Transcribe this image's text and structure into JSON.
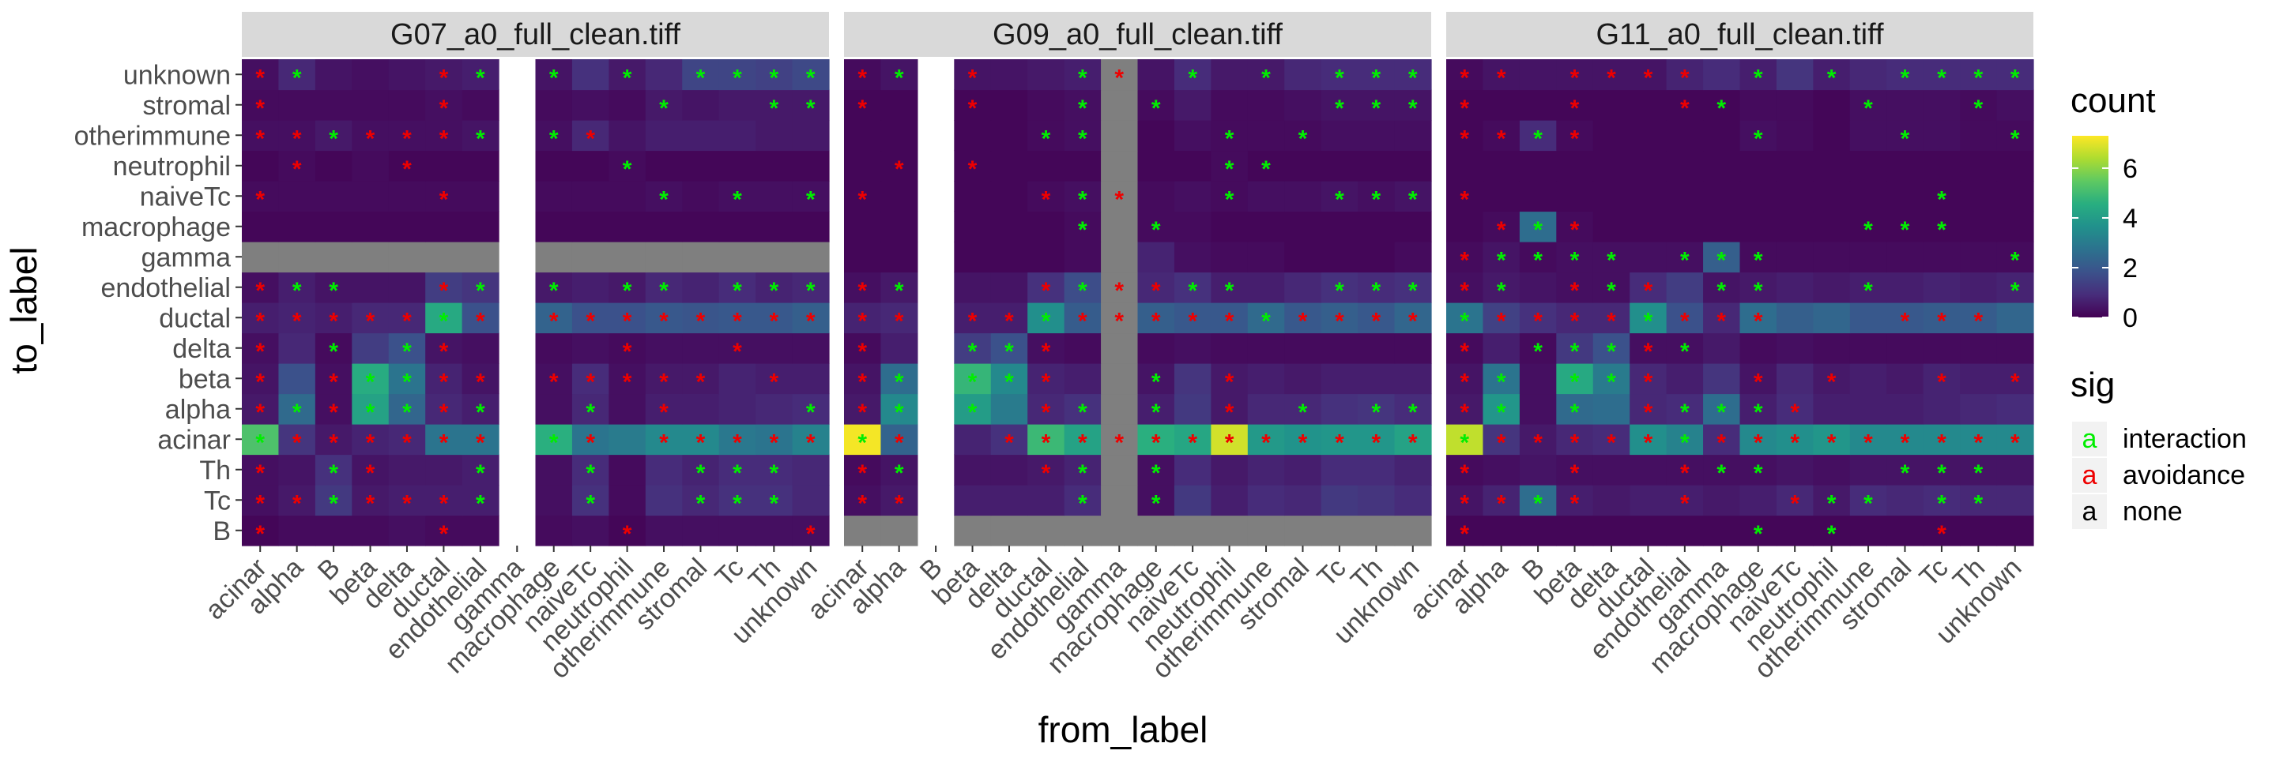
{
  "chart_data": {
    "type": "heatmap",
    "xlabel": "from_label",
    "ylabel": "to_label",
    "x_categories": [
      "acinar",
      "alpha",
      "B",
      "beta",
      "delta",
      "ductal",
      "endothelial",
      "gamma",
      "macrophage",
      "naiveTc",
      "neutrophil",
      "otherimmune",
      "stromal",
      "Tc",
      "Th",
      "unknown"
    ],
    "y_categories": [
      "B",
      "Tc",
      "Th",
      "acinar",
      "alpha",
      "beta",
      "delta",
      "ductal",
      "endothelial",
      "gamma",
      "macrophage",
      "naiveTc",
      "neutrophil",
      "otherimmune",
      "stromal",
      "unknown"
    ],
    "count_legend": {
      "title": "count",
      "range": [
        0,
        7.3
      ],
      "breaks": [
        "0",
        "2",
        "4",
        "6"
      ]
    },
    "sig_legend": {
      "title": "sig",
      "key_glyph": "a",
      "entries": [
        {
          "label": "interaction",
          "code": "i",
          "color": "#00ee00"
        },
        {
          "label": "avoidance",
          "code": "a",
          "color": "#ee0000"
        },
        {
          "label": "none",
          "code": "n",
          "color": "#000000"
        }
      ]
    },
    "na_color": "#7f7f7f",
    "panels": [
      {
        "title": "G07_a0_full_clean.tiff",
        "missing_columns": [
          "gamma"
        ],
        "na_rows": [
          "gamma"
        ],
        "na_cols": [],
        "matrix": [
          [
            0.1,
            0.2,
            0.2,
            0.2,
            0.3,
            0.2,
            0.2,
            null,
            0.2,
            0.3,
            0.1,
            0.3,
            0.3,
            0.3,
            0.3,
            0.3
          ],
          [
            0.3,
            0.5,
            1.2,
            0.5,
            0.6,
            0.6,
            0.6,
            null,
            0.3,
            1.0,
            0.2,
            1.0,
            0.8,
            1.0,
            1.0,
            0.8
          ],
          [
            0.3,
            0.4,
            1.0,
            0.4,
            0.5,
            0.5,
            0.6,
            null,
            0.3,
            0.9,
            0.2,
            0.9,
            0.7,
            0.9,
            0.9,
            0.8
          ],
          [
            5.2,
            1.1,
            0.5,
            0.7,
            0.8,
            2.8,
            2.8,
            null,
            4.6,
            2.8,
            3.0,
            3.4,
            3.4,
            2.9,
            2.8,
            3.2
          ],
          [
            0.5,
            2.5,
            0.3,
            4.2,
            2.4,
            0.8,
            0.6,
            null,
            0.3,
            0.8,
            0.3,
            0.6,
            0.6,
            0.7,
            0.8,
            0.9
          ],
          [
            0.4,
            1.8,
            0.3,
            4.5,
            2.8,
            0.7,
            0.4,
            null,
            0.3,
            0.9,
            0.3,
            0.5,
            0.5,
            0.7,
            0.6,
            0.6
          ],
          [
            0.3,
            0.8,
            0.2,
            1.3,
            1.8,
            0.4,
            0.3,
            null,
            0.2,
            0.3,
            0.2,
            0.3,
            0.3,
            0.3,
            0.3,
            0.3
          ],
          [
            0.6,
            0.7,
            0.6,
            0.8,
            0.8,
            4.4,
            1.8,
            null,
            2.3,
            1.8,
            1.8,
            2.0,
            1.9,
            2.0,
            2.0,
            2.2
          ],
          [
            0.3,
            0.6,
            0.4,
            0.4,
            0.4,
            1.3,
            1.1,
            null,
            0.5,
            0.6,
            0.5,
            0.8,
            0.7,
            0.9,
            0.7,
            0.8
          ],
          [
            null,
            null,
            null,
            null,
            null,
            null,
            null,
            null,
            null,
            null,
            null,
            null,
            null,
            null,
            null,
            null
          ],
          [
            0.1,
            0.1,
            0.1,
            0.1,
            0.1,
            0.1,
            0.1,
            null,
            0.1,
            0.1,
            0.1,
            0.1,
            0.1,
            0.1,
            0.1,
            0.1
          ],
          [
            0.2,
            0.2,
            0.2,
            0.2,
            0.2,
            0.2,
            0.2,
            null,
            0.2,
            0.2,
            0.2,
            0.3,
            0.2,
            0.3,
            0.3,
            0.3
          ],
          [
            0.1,
            0.2,
            0.1,
            0.2,
            0.1,
            0.1,
            0.1,
            null,
            0.1,
            0.1,
            0.2,
            0.1,
            0.1,
            0.1,
            0.1,
            0.1
          ],
          [
            0.3,
            0.3,
            0.5,
            0.3,
            0.3,
            0.3,
            0.4,
            null,
            0.3,
            0.8,
            0.4,
            0.6,
            0.6,
            0.6,
            0.5,
            0.5
          ],
          [
            0.2,
            0.2,
            0.2,
            0.2,
            0.2,
            0.3,
            0.2,
            null,
            0.2,
            0.3,
            0.2,
            0.5,
            0.4,
            0.5,
            0.5,
            0.5
          ],
          [
            0.3,
            0.8,
            0.4,
            0.3,
            0.4,
            0.5,
            0.6,
            null,
            0.4,
            1.0,
            0.5,
            0.8,
            1.5,
            1.5,
            1.4,
            1.6
          ]
        ],
        "sig": [
          "annnnanannannnna",
          "aaiaaaianinniiin",
          "aniannianinniiin",
          "iaaaaaanianaaaaa",
          "aiaiiaianinannni",
          "anaiiaanaaaaanan",
          "aninianannannann",
          "aaaaaiaaaaaaaaaa",
          "aiinnaininiiniii",
          "nnnnnnnnnnnnnnnn",
          "nnnnnnnnnnnnnnnn",
          "annnnannnnninini",
          "nannannnnninnnnn",
          "aaiaaaiaiannnnnn",
          "annnnanannninnii",
          "ainnnainininiiii"
        ]
      },
      {
        "title": "G09_a0_full_clean.tiff",
        "missing_columns": [
          "B"
        ],
        "na_rows": [
          "B"
        ],
        "na_cols": [
          "gamma"
        ],
        "matrix": [
          [
            null,
            null,
            null,
            null,
            null,
            null,
            null,
            null,
            null,
            null,
            null,
            null,
            null,
            null,
            null,
            null
          ],
          [
            0.3,
            0.5,
            null,
            0.6,
            0.6,
            0.6,
            0.9,
            null,
            0.3,
            1.2,
            0.6,
            0.9,
            0.8,
            1.2,
            1.1,
            0.9
          ],
          [
            0.2,
            0.4,
            null,
            0.4,
            0.4,
            0.5,
            0.7,
            null,
            0.3,
            0.9,
            0.5,
            0.7,
            0.6,
            0.9,
            0.9,
            0.7
          ],
          [
            7.2,
            2.3,
            null,
            0.7,
            1.0,
            4.9,
            4.2,
            null,
            4.6,
            4.3,
            6.8,
            3.9,
            3.7,
            3.8,
            3.8,
            4.2
          ],
          [
            0.5,
            3.4,
            null,
            4.0,
            3.0,
            0.8,
            1.0,
            null,
            0.6,
            1.2,
            0.5,
            0.8,
            0.8,
            1.0,
            1.1,
            0.9
          ],
          [
            0.4,
            2.6,
            null,
            4.8,
            3.4,
            0.7,
            0.6,
            null,
            0.4,
            1.1,
            0.5,
            0.6,
            0.5,
            0.6,
            0.6,
            0.6
          ],
          [
            0.2,
            0.6,
            null,
            1.3,
            1.8,
            0.3,
            0.2,
            null,
            0.2,
            0.3,
            0.2,
            0.2,
            0.2,
            0.2,
            0.2,
            0.2
          ],
          [
            0.7,
            0.8,
            null,
            0.6,
            0.6,
            3.6,
            2.1,
            null,
            2.2,
            2.0,
            2.0,
            2.5,
            2.0,
            2.2,
            2.0,
            2.4
          ],
          [
            0.3,
            0.5,
            null,
            0.4,
            0.4,
            1.0,
            1.7,
            null,
            0.8,
            1.0,
            0.6,
            0.6,
            0.8,
            1.0,
            0.9,
            1.0
          ],
          [
            0.1,
            0.1,
            null,
            0.1,
            0.1,
            0.1,
            0.2,
            null,
            0.7,
            0.3,
            0.2,
            0.2,
            0.1,
            0.1,
            0.1,
            0.2
          ],
          [
            0.1,
            0.1,
            null,
            0.1,
            0.1,
            0.1,
            0.2,
            null,
            0.2,
            0.2,
            0.1,
            0.1,
            0.1,
            0.1,
            0.1,
            0.1
          ],
          [
            0.1,
            0.1,
            null,
            0.1,
            0.1,
            0.2,
            0.3,
            null,
            0.2,
            0.3,
            0.2,
            0.3,
            0.3,
            0.4,
            0.3,
            0.4
          ],
          [
            0.1,
            0.1,
            null,
            0.1,
            0.1,
            0.1,
            0.1,
            null,
            0.1,
            0.1,
            0.2,
            0.1,
            0.1,
            0.1,
            0.1,
            0.1
          ],
          [
            0.1,
            0.1,
            null,
            0.1,
            0.1,
            0.2,
            0.3,
            null,
            0.1,
            0.3,
            0.2,
            0.2,
            0.2,
            0.3,
            0.3,
            0.3
          ],
          [
            0.1,
            0.1,
            null,
            0.1,
            0.1,
            0.2,
            0.3,
            null,
            0.2,
            0.5,
            0.2,
            0.2,
            0.3,
            0.4,
            0.4,
            0.4
          ],
          [
            0.2,
            0.4,
            null,
            0.4,
            0.4,
            0.5,
            0.6,
            null,
            0.4,
            0.9,
            0.5,
            0.5,
            0.8,
            0.9,
            0.9,
            0.9
          ]
        ],
        "sig": [
          "nnnnnnnnnnnnnnnn",
          "aannnnininnnnnnn",
          "ainnnaininnnnnnn",
          "iannaaaaaaaaaaaa",
          "aininaininaninii",
          "ainiianninannnnn",
          "aniiiannnnnnnnnn",
          "aaaaaiaaaaaiaaaa",
          "ainnnaiaaiinniii",
          "nnnnnnnnnnnnnnnn",
          "nnnnnnininnnnnnn",
          "annnnaianninniii",
          "nanannnnnniinnnn",
          "nnnnniinnnininnn",
          "annannininnnniii",
          "ainannianininiii"
        ]
      },
      {
        "title": "G11_a0_full_clean.tiff",
        "missing_columns": [],
        "na_rows": [],
        "na_cols": [],
        "matrix": [
          [
            0.1,
            0.1,
            0.1,
            0.1,
            0.1,
            0.1,
            0.1,
            0.1,
            0.1,
            0.1,
            0.1,
            0.1,
            0.1,
            0.1,
            0.1,
            0.1
          ],
          [
            0.4,
            0.7,
            2.6,
            0.6,
            0.5,
            0.6,
            0.6,
            0.5,
            0.6,
            0.8,
            0.5,
            0.9,
            0.8,
            0.9,
            0.8,
            0.8
          ],
          [
            0.2,
            0.3,
            0.4,
            0.3,
            0.3,
            0.3,
            0.3,
            0.3,
            0.3,
            0.4,
            0.3,
            0.4,
            0.4,
            0.4,
            0.4,
            0.4
          ],
          [
            6.6,
            1.1,
            0.5,
            0.8,
            0.9,
            3.6,
            3.2,
            0.9,
            3.4,
            3.6,
            3.8,
            3.4,
            3.4,
            3.4,
            3.4,
            3.4
          ],
          [
            0.5,
            3.8,
            0.3,
            2.5,
            2.6,
            0.8,
            0.9,
            2.6,
            0.6,
            0.9,
            0.6,
            0.6,
            0.6,
            0.7,
            0.8,
            0.9
          ],
          [
            0.4,
            2.8,
            0.3,
            4.4,
            3.0,
            0.8,
            0.6,
            1.1,
            0.4,
            0.8,
            0.5,
            0.6,
            0.5,
            0.7,
            0.6,
            0.6
          ],
          [
            0.2,
            0.6,
            0.2,
            1.2,
            1.8,
            0.3,
            0.3,
            0.5,
            0.2,
            0.3,
            0.2,
            0.2,
            0.2,
            0.2,
            0.2,
            0.2
          ],
          [
            2.8,
            1.4,
            1.0,
            0.8,
            0.8,
            3.6,
            1.8,
            0.8,
            2.6,
            2.2,
            2.4,
            2.0,
            2.0,
            2.1,
            2.1,
            2.4
          ],
          [
            0.3,
            0.5,
            0.4,
            0.3,
            0.3,
            0.9,
            1.3,
            0.4,
            0.5,
            0.6,
            0.5,
            0.6,
            0.6,
            0.7,
            0.6,
            0.7
          ],
          [
            0.2,
            0.4,
            0.2,
            0.3,
            0.3,
            0.3,
            0.3,
            2.2,
            0.2,
            0.2,
            0.2,
            0.2,
            0.2,
            0.2,
            0.2,
            0.2
          ],
          [
            0.1,
            0.2,
            2.6,
            0.2,
            0.1,
            0.1,
            0.1,
            0.1,
            0.1,
            0.1,
            0.1,
            0.1,
            0.1,
            0.1,
            0.1,
            0.1
          ],
          [
            0.1,
            0.1,
            0.1,
            0.1,
            0.1,
            0.1,
            0.1,
            0.1,
            0.1,
            0.1,
            0.1,
            0.1,
            0.1,
            0.1,
            0.1,
            0.1
          ],
          [
            0.1,
            0.1,
            0.1,
            0.1,
            0.1,
            0.1,
            0.1,
            0.1,
            0.1,
            0.1,
            0.1,
            0.1,
            0.1,
            0.1,
            0.1,
            0.1
          ],
          [
            0.1,
            0.2,
            0.9,
            0.2,
            0.1,
            0.1,
            0.1,
            0.1,
            0.3,
            0.2,
            0.1,
            0.3,
            0.3,
            0.3,
            0.2,
            0.2
          ],
          [
            0.1,
            0.1,
            0.1,
            0.1,
            0.1,
            0.1,
            0.1,
            0.1,
            0.2,
            0.2,
            0.1,
            0.3,
            0.3,
            0.3,
            0.2,
            0.3
          ],
          [
            0.2,
            0.4,
            0.4,
            0.4,
            0.4,
            0.4,
            0.7,
            0.9,
            0.6,
            1.1,
            0.6,
            0.8,
            0.9,
            0.9,
            0.9,
            0.9
          ]
        ],
        "sig": [
          "annnnnnnininnann",
          "aaiannannaiiniin",
          "annannaiinnniiin",
          "iaaaaaiaaaaaaaaa",
          "aininaiiiannnnnn",
          "ainiiannanannana",
          "aniiiainnnnnnnnn",
          "iaaaaiaaannnaaan",
          "ainaianiinninnni",
          "aiiiiniiinnnnnni",
          "naiannnnnnniiinn",
          "annnnnnnnnnnninn",
          "nnnnnnnnnnnnnnnn",
          "aaiannnninnninni",
          "annannainnninnin",
          "aanaaaanininiiii"
        ]
      }
    ]
  }
}
